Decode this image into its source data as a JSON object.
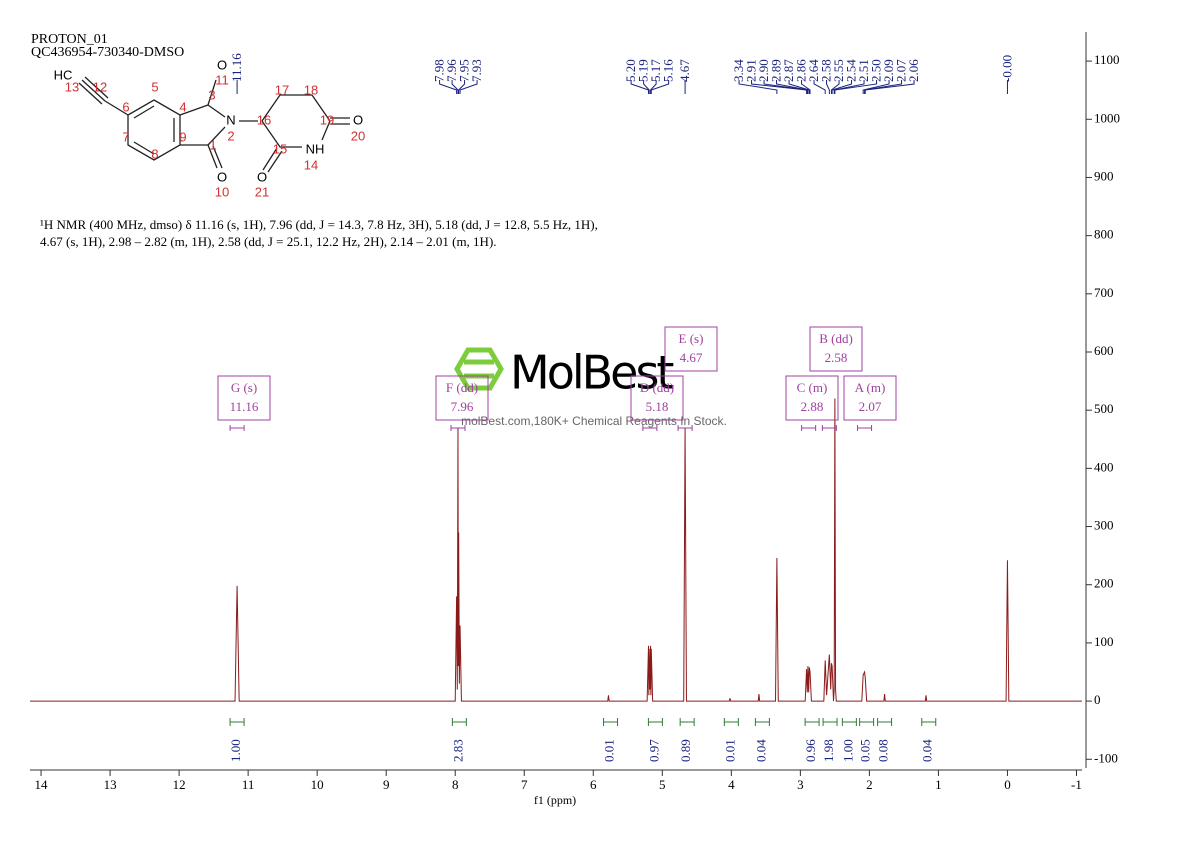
{
  "chart_data": {
    "type": "nmr",
    "title": "PROTON_01",
    "subtitle": "QC436954-730340-DMSO",
    "xlabel": "f1 (ppm)",
    "annotation": "¹H NMR (400 MHz, dmso) δ 11.16 (s, 1H), 7.96 (dd, J = 14.3, 7.8 Hz, 3H), 5.18 (dd, J = 12.8, 5.5 Hz, 1H), 4.67 (s, 1H), 2.98 – 2.82 (m, 1H), 2.58 (dd, J = 25.1, 12.2 Hz, 2H), 2.14 – 2.01 (m, 1H).",
    "watermark": {
      "brand": "MolBest",
      "tagline": "molBest.com,180K+ Chemical Reagents In Stock."
    },
    "xlim": [
      14.16,
      -1.08
    ],
    "xticks": [
      14,
      13,
      12,
      11,
      10,
      9,
      8,
      7,
      6,
      5,
      4,
      3,
      2,
      1,
      0,
      -1
    ],
    "ylim": [
      -115,
      1150
    ],
    "yticks": [
      -100,
      0,
      100,
      200,
      300,
      400,
      500,
      600,
      700,
      800,
      900,
      1000,
      1100
    ],
    "color": "#8b1a1a",
    "x": [
      14.16,
      11.19,
      11.16,
      11.13,
      8.0,
      7.98,
      7.97,
      7.96,
      7.955,
      7.95,
      7.94,
      7.93,
      7.91,
      5.79,
      5.78,
      5.77,
      5.22,
      5.2,
      5.195,
      5.19,
      5.18,
      5.17,
      5.165,
      5.16,
      5.14,
      4.69,
      4.67,
      4.65,
      4.03,
      4.02,
      4.01,
      3.61,
      3.6,
      3.59,
      3.36,
      3.34,
      3.32,
      2.93,
      2.91,
      2.9,
      2.89,
      2.88,
      2.87,
      2.86,
      2.84,
      2.66,
      2.64,
      2.62,
      2.58,
      2.56,
      2.55,
      2.54,
      2.52,
      2.51,
      2.5,
      2.49,
      2.48,
      2.11,
      2.09,
      2.07,
      2.06,
      2.04,
      1.79,
      1.78,
      1.77,
      1.19,
      1.18,
      1.17,
      0.02,
      0.0,
      -0.02,
      -1.08
    ],
    "values": [
      0,
      0,
      198,
      0,
      0,
      180,
      20,
      470,
      60,
      290,
      30,
      130,
      0,
      0,
      10,
      0,
      0,
      95,
      10,
      90,
      20,
      95,
      10,
      90,
      0,
      0,
      470,
      0,
      0,
      5,
      0,
      0,
      12,
      0,
      0,
      246,
      0,
      0,
      55,
      15,
      60,
      15,
      58,
      50,
      0,
      0,
      70,
      10,
      80,
      20,
      65,
      60,
      0,
      20,
      520,
      20,
      0,
      0,
      45,
      50,
      40,
      0,
      0,
      12,
      0,
      0,
      10,
      0,
      0,
      242,
      0,
      0
    ],
    "peaks": {
      "values": [
        11.16,
        7.98,
        7.96,
        7.95,
        7.93,
        5.2,
        5.19,
        5.17,
        5.16,
        4.67,
        3.34,
        2.91,
        2.9,
        2.89,
        2.87,
        2.86,
        2.64,
        2.58,
        2.55,
        2.54,
        2.51,
        2.5,
        2.09,
        2.07,
        2.06,
        0
      ],
      "value_labels": [
        "11.16",
        "7.98",
        "7.96",
        "7.95",
        "7.93",
        "5.20",
        "5.19",
        "5.17",
        "5.16",
        "4.67",
        "3.34",
        "2.91",
        "2.90",
        "2.89",
        "2.87",
        "2.86",
        "2.64",
        "2.58",
        "2.55",
        "2.54",
        "2.51",
        "2.50",
        "2.09",
        "2.07",
        "2.06",
        "-0.00"
      ]
    },
    "multiplets": [
      {
        "label": "G (s)",
        "shift": 11.16
      },
      {
        "label": "F (dd)",
        "shift": 7.96
      },
      {
        "label": "D (dd)",
        "shift": 5.18
      },
      {
        "label": "E (s)",
        "shift": 4.67
      },
      {
        "label": "C (m)",
        "shift": 2.88
      },
      {
        "label": "B (dd)",
        "shift": 2.58
      },
      {
        "label": "A (m)",
        "shift": 2.07
      }
    ],
    "integrals": {
      "x": [
        11.16,
        7.94,
        5.75,
        5.1,
        4.64,
        4.0,
        3.55,
        2.83,
        2.57,
        2.29,
        2.04,
        1.78,
        1.14
      ],
      "values": [
        1,
        2.83,
        0.01,
        0.97,
        0.89,
        0.01,
        0.04,
        0.96,
        1.98,
        1,
        0.05,
        0.08,
        0.04
      ],
      "value_labels": [
        "1.00",
        "2.83",
        "0.01",
        "0.97",
        "0.89",
        "0.01",
        "0.04",
        "0.96",
        "1.98",
        "1.00",
        "0.05",
        "0.08",
        "0.04"
      ]
    },
    "molecule": {
      "atoms": [
        "HC",
        "13",
        "12",
        "6",
        "5",
        "4",
        "7",
        "8",
        "9",
        "3",
        "O",
        "11",
        "N",
        "2",
        "16",
        "17",
        "18",
        "19",
        "O",
        "20",
        "15",
        "NH",
        "14",
        "1",
        "O",
        "10",
        "O",
        "21"
      ]
    }
  }
}
